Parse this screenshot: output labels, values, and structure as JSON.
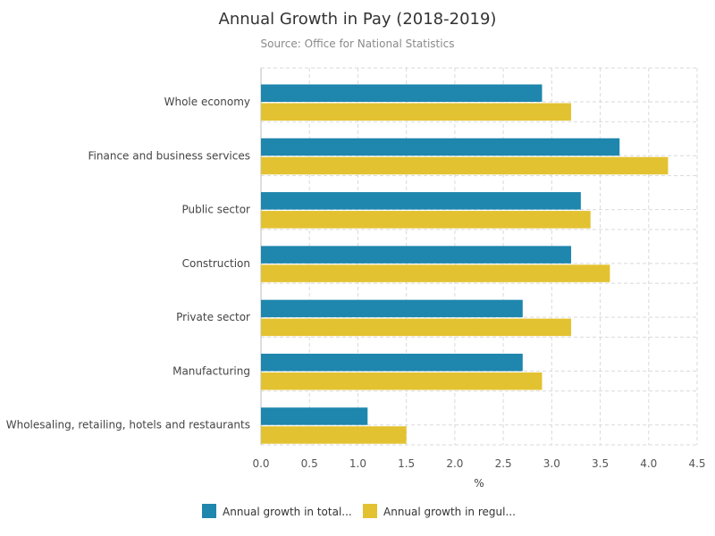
{
  "chart_data": {
    "type": "bar",
    "orientation": "horizontal",
    "title": "Annual Growth in Pay (2018-2019)",
    "subtitle": "Source: Office for National Statistics",
    "categories": [
      "Whole economy",
      "Finance and business services",
      "Public sector",
      "Construction",
      "Private sector",
      "Manufacturing",
      "Wholesaling, retailing, hotels and restaurants"
    ],
    "series": [
      {
        "name": "Annual growth in total...",
        "color": "#1f86ad",
        "values": [
          2.9,
          3.7,
          3.3,
          3.2,
          2.7,
          2.7,
          1.1
        ]
      },
      {
        "name": "Annual growth in regul...",
        "color": "#e3c232",
        "values": [
          3.2,
          4.2,
          3.4,
          3.6,
          3.2,
          2.9,
          1.5
        ]
      }
    ],
    "xlabel": "%",
    "xlim": [
      0,
      4.5
    ],
    "xticks": [
      0,
      0.5,
      1,
      1.5,
      2,
      2.5,
      3,
      3.5,
      4,
      4.5
    ],
    "xtick_labels": [
      "0.0",
      "0.5",
      "1.0",
      "1.5",
      "2.0",
      "2.5",
      "3.0",
      "3.5",
      "4.0",
      "4.5"
    ],
    "grid": true,
    "legend_position": "bottom"
  }
}
